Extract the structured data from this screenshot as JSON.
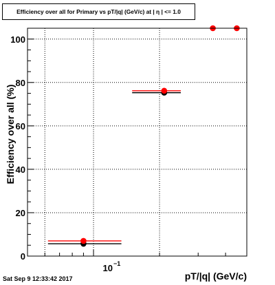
{
  "chart_data": {
    "type": "scatter",
    "title": "Efficiency over all for Primary vs pT/|q| (GeV/c) at | η | <= 1.0",
    "xlabel": "pT/|q| (GeV/c)",
    "ylabel": "Efficiency over all (%)",
    "x_scale": "log",
    "xlim": [
      0.05,
      0.5
    ],
    "ylim": [
      0,
      105
    ],
    "x_tick_labels": [
      "10",
      "−1"
    ],
    "y_ticks": [
      0,
      20,
      40,
      60,
      80,
      100
    ],
    "grid": true,
    "series": [
      {
        "color": "#ff0000",
        "marker": "circle",
        "points": [
          {
            "x": 0.09,
            "xerr_low": 0.062,
            "xerr_high": 0.134,
            "y": 7.0
          },
          {
            "x": 0.21,
            "xerr_low": 0.15,
            "xerr_high": 0.25,
            "y": 76.2
          },
          {
            "x": 0.35,
            "y": 105
          },
          {
            "x": 0.45,
            "y": 105
          }
        ]
      },
      {
        "color": "#000000",
        "marker": "circle",
        "points": [
          {
            "x": 0.09,
            "xerr_low": 0.062,
            "xerr_high": 0.134,
            "y": 5.7
          },
          {
            "x": 0.21,
            "xerr_low": 0.15,
            "xerr_high": 0.25,
            "y": 75.3
          }
        ]
      }
    ]
  },
  "footer": {
    "date": "Sat Sep  9 12:33:42 2017"
  }
}
